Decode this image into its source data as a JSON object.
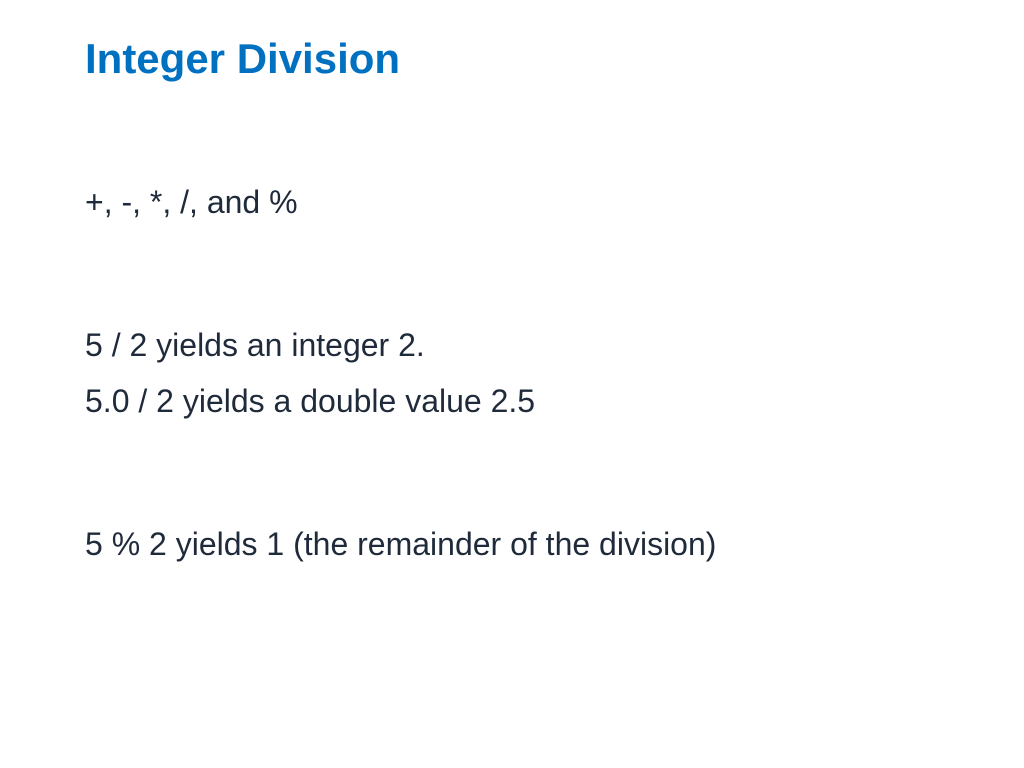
{
  "slide": {
    "title": "Integer Division",
    "title_color": "#0070c0",
    "title_fontsize": 42,
    "body_color": "#1f2a3a",
    "body_fontsize": 32,
    "background_color": "#ffffff",
    "paragraphs": {
      "p1": "+, -, *, /, and %",
      "p2": "5 / 2 yields an integer 2.",
      "p3": "5.0 / 2 yields a double value 2.5",
      "p4": "5 % 2 yields 1 (the remainder of the division)"
    }
  }
}
